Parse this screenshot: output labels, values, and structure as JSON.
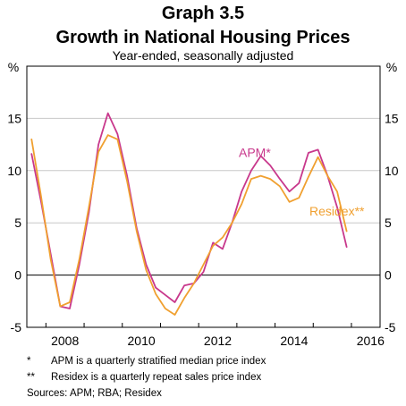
{
  "header": {
    "graph_number": "Graph 3.5",
    "title": "Growth in National Housing Prices",
    "subtitle": "Year-ended, seasonally adjusted"
  },
  "colors": {
    "apm": "#c8388c",
    "residex": "#f0a030",
    "grid": "#c8c8c8",
    "axis": "#000000"
  },
  "chart_data": {
    "type": "line",
    "unit_left": "%",
    "unit_right": "%",
    "ylim": [
      -5,
      20
    ],
    "yticks": [
      -5,
      0,
      5,
      10,
      15
    ],
    "xlim": [
      2007.5,
      2016.75
    ],
    "xticks": [
      2008,
      2010,
      2012,
      2014,
      2016
    ],
    "grid": true,
    "series": [
      {
        "name": "APM*",
        "key": "apm",
        "points": [
          [
            2007.625,
            11.6
          ],
          [
            2007.875,
            7.0
          ],
          [
            2008.125,
            2.0
          ],
          [
            2008.375,
            -3.0
          ],
          [
            2008.625,
            -3.2
          ],
          [
            2008.875,
            1.0
          ],
          [
            2009.125,
            6.0
          ],
          [
            2009.375,
            12.5
          ],
          [
            2009.625,
            15.5
          ],
          [
            2009.875,
            13.5
          ],
          [
            2010.125,
            9.5
          ],
          [
            2010.375,
            4.5
          ],
          [
            2010.625,
            1.0
          ],
          [
            2010.875,
            -1.2
          ],
          [
            2011.125,
            -1.9
          ],
          [
            2011.375,
            -2.6
          ],
          [
            2011.625,
            -1.0
          ],
          [
            2011.875,
            -0.8
          ],
          [
            2012.125,
            0.3
          ],
          [
            2012.375,
            3.1
          ],
          [
            2012.625,
            2.5
          ],
          [
            2012.875,
            5.0
          ],
          [
            2013.125,
            8.0
          ],
          [
            2013.375,
            10.0
          ],
          [
            2013.625,
            11.4
          ],
          [
            2013.875,
            10.5
          ],
          [
            2014.125,
            9.2
          ],
          [
            2014.375,
            8.0
          ],
          [
            2014.625,
            8.8
          ],
          [
            2014.875,
            11.7
          ],
          [
            2015.125,
            12.0
          ],
          [
            2015.375,
            9.5
          ],
          [
            2015.625,
            6.5
          ],
          [
            2015.875,
            2.7
          ]
        ]
      },
      {
        "name": "Residex**",
        "key": "residex",
        "points": [
          [
            2007.625,
            13.0
          ],
          [
            2007.875,
            7.5
          ],
          [
            2008.125,
            1.5
          ],
          [
            2008.375,
            -3.0
          ],
          [
            2008.625,
            -2.6
          ],
          [
            2008.875,
            1.5
          ],
          [
            2009.125,
            6.5
          ],
          [
            2009.375,
            11.8
          ],
          [
            2009.625,
            13.4
          ],
          [
            2009.875,
            13.0
          ],
          [
            2010.125,
            9.0
          ],
          [
            2010.375,
            4.2
          ],
          [
            2010.625,
            0.5
          ],
          [
            2010.875,
            -1.8
          ],
          [
            2011.125,
            -3.2
          ],
          [
            2011.375,
            -3.8
          ],
          [
            2011.625,
            -2.2
          ],
          [
            2011.875,
            -0.8
          ],
          [
            2012.125,
            1.0
          ],
          [
            2012.375,
            2.8
          ],
          [
            2012.625,
            3.6
          ],
          [
            2012.875,
            5.0
          ],
          [
            2013.125,
            6.8
          ],
          [
            2013.375,
            9.2
          ],
          [
            2013.625,
            9.5
          ],
          [
            2013.875,
            9.2
          ],
          [
            2014.125,
            8.5
          ],
          [
            2014.375,
            7.0
          ],
          [
            2014.625,
            7.4
          ],
          [
            2014.875,
            9.4
          ],
          [
            2015.125,
            11.3
          ],
          [
            2015.375,
            9.5
          ],
          [
            2015.625,
            8.0
          ],
          [
            2015.875,
            4.2
          ]
        ]
      }
    ],
    "labels": [
      {
        "text": "APM*",
        "key": "apm",
        "x": 2013.05,
        "y": 11.3
      },
      {
        "text": "Residex**",
        "key": "residex",
        "x": 2014.9,
        "y": 5.7
      }
    ]
  },
  "notes": [
    {
      "mark": "*",
      "text": "APM is a quarterly stratified median price index"
    },
    {
      "mark": "**",
      "text": "Residex is a quarterly repeat sales price index"
    }
  ],
  "sources": "Sources:   APM; RBA; Residex"
}
